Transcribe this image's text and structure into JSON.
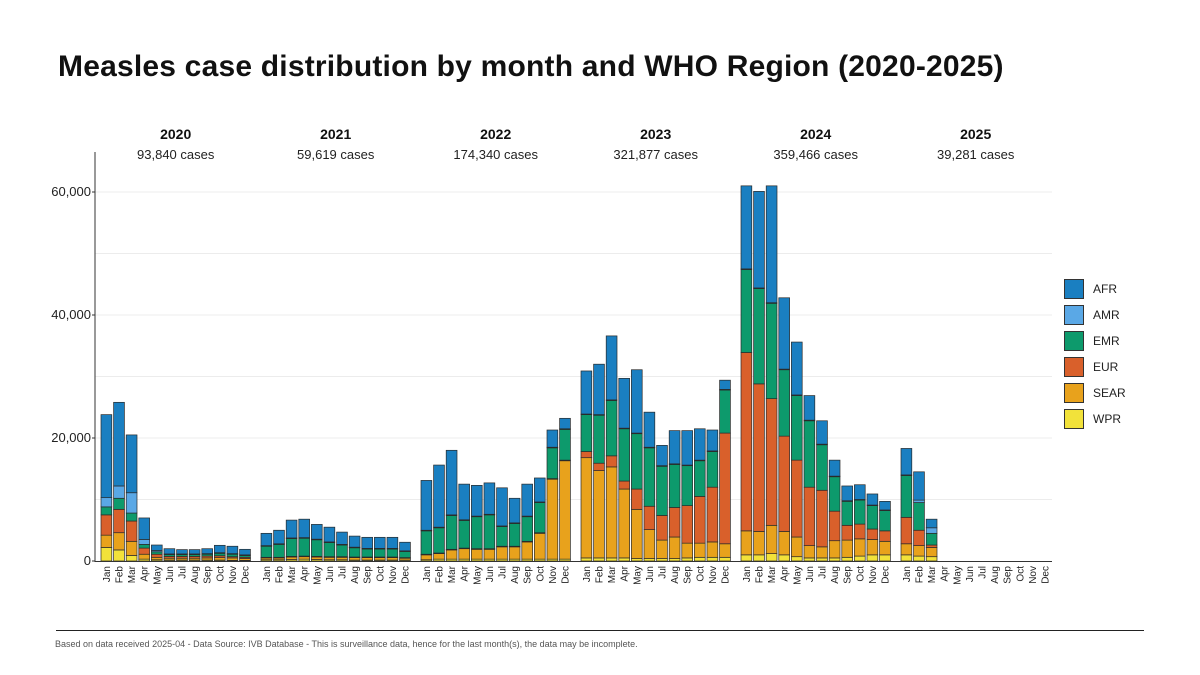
{
  "title": "Measles case distribution by month and WHO Region (2020-2025)",
  "footnote": "Based on data received 2025-04 - Data Source: IVB Database - This is surveillance data, hence for the last month(s), the data may be incomplete.",
  "legend": [
    {
      "name": "AFR",
      "color": "#1a7fc1"
    },
    {
      "name": "AMR",
      "color": "#5aa8e6"
    },
    {
      "name": "EMR",
      "color": "#0d9a6c"
    },
    {
      "name": "EUR",
      "color": "#d9602b"
    },
    {
      "name": "SEAR",
      "color": "#e8a21c"
    },
    {
      "name": "WPR",
      "color": "#f2e23a"
    }
  ],
  "chart_data": {
    "type": "bar",
    "stacked": true,
    "title": "Measles case distribution by month and WHO Region (2020-2025)",
    "xlabel": "",
    "ylabel": "",
    "ylim": [
      0,
      65000
    ],
    "yticks": [
      0,
      20000,
      40000,
      60000
    ],
    "ytick_labels": [
      "0",
      "20,000",
      "40,000",
      "60,000"
    ],
    "grid": true,
    "legend_position": "right",
    "months": [
      "Jan",
      "Feb",
      "Mar",
      "Apr",
      "May",
      "Jun",
      "Jul",
      "Aug",
      "Sep",
      "Oct",
      "Nov",
      "Dec"
    ],
    "years": [
      {
        "year": "2020",
        "total": "93,840 cases"
      },
      {
        "year": "2021",
        "total": "59,619 cases"
      },
      {
        "year": "2022",
        "total": "174,340 cases"
      },
      {
        "year": "2023",
        "total": "321,877 cases"
      },
      {
        "year": "2024",
        "total": "359,466 cases"
      },
      {
        "year": "2025",
        "total": "39,281 cases"
      }
    ],
    "series_order": [
      "WPR",
      "SEAR",
      "EUR",
      "EMR",
      "AMR",
      "AFR"
    ],
    "series": [
      {
        "name": "WPR",
        "values": [
          2200,
          1800,
          900,
          300,
          200,
          150,
          150,
          150,
          150,
          150,
          100,
          100,
          200,
          200,
          250,
          300,
          250,
          200,
          200,
          150,
          150,
          150,
          150,
          150,
          200,
          300,
          300,
          300,
          300,
          300,
          300,
          300,
          300,
          300,
          300,
          300,
          500,
          500,
          500,
          500,
          400,
          400,
          400,
          400,
          500,
          600,
          600,
          600,
          1000,
          1000,
          1200,
          1000,
          700,
          500,
          500,
          500,
          600,
          800,
          1000,
          1000,
          1000,
          800,
          700,
          0,
          0,
          0,
          0,
          0,
          0,
          0,
          0,
          0
        ]
      },
      {
        "name": "SEAR",
        "values": [
          2000,
          2800,
          2300,
          800,
          400,
          300,
          300,
          300,
          350,
          400,
          400,
          300,
          300,
          300,
          400,
          400,
          400,
          400,
          400,
          400,
          400,
          400,
          400,
          300,
          800,
          900,
          1500,
          1700,
          1600,
          1600,
          2000,
          2000,
          2800,
          4200,
          13000,
          16000,
          16300,
          14200,
          14800,
          11200,
          8000,
          4700,
          3000,
          3500,
          2400,
          2300,
          2500,
          2200,
          3900,
          3800,
          4600,
          3800,
          3200,
          2000,
          1800,
          2800,
          2800,
          2800,
          2500,
          2200,
          1800,
          1700,
          1500,
          0,
          0,
          0,
          0,
          0,
          0,
          0,
          0,
          0
        ]
      },
      {
        "name": "EUR",
        "values": [
          3300,
          3800,
          3300,
          1000,
          500,
          300,
          300,
          300,
          300,
          300,
          200,
          200,
          100,
          100,
          100,
          100,
          100,
          100,
          100,
          100,
          100,
          100,
          100,
          100,
          100,
          100,
          100,
          100,
          100,
          100,
          100,
          100,
          100,
          100,
          100,
          100,
          1000,
          1200,
          1800,
          1300,
          3300,
          3800,
          4000,
          4800,
          6100,
          7600,
          8900,
          18000,
          29000,
          24000,
          20600,
          15500,
          12500,
          9500,
          9200,
          4800,
          2400,
          2400,
          1700,
          1700,
          4300,
          2500,
          400,
          0,
          0,
          0,
          0,
          0,
          0,
          0,
          0,
          0
        ]
      },
      {
        "name": "EMR",
        "values": [
          1300,
          1800,
          1300,
          600,
          400,
          300,
          300,
          300,
          300,
          400,
          400,
          300,
          1800,
          2100,
          2900,
          2900,
          2700,
          2300,
          1900,
          1500,
          1300,
          1300,
          1300,
          1000,
          3800,
          4100,
          5500,
          4500,
          5200,
          5500,
          3200,
          3700,
          4000,
          4900,
          5000,
          5000,
          6000,
          7800,
          9000,
          8500,
          9000,
          9500,
          8000,
          7000,
          6500,
          5800,
          5800,
          7000,
          13500,
          15500,
          15500,
          10800,
          10500,
          10800,
          7400,
          5600,
          3900,
          3900,
          3800,
          3300,
          6800,
          4500,
          1900,
          0,
          0,
          0,
          0,
          0,
          0,
          0,
          0,
          0
        ]
      },
      {
        "name": "AMR",
        "values": [
          1500,
          2000,
          3300,
          800,
          200,
          100,
          100,
          100,
          100,
          100,
          100,
          100,
          100,
          100,
          100,
          100,
          100,
          100,
          100,
          100,
          100,
          100,
          100,
          100,
          100,
          100,
          100,
          100,
          100,
          100,
          100,
          100,
          100,
          100,
          100,
          100,
          100,
          100,
          100,
          100,
          100,
          100,
          100,
          100,
          100,
          100,
          100,
          100,
          100,
          100,
          100,
          100,
          100,
          100,
          100,
          100,
          100,
          100,
          100,
          100,
          100,
          400,
          900,
          0,
          0,
          0,
          0,
          0,
          0,
          0,
          0,
          0
        ]
      },
      {
        "name": "AFR",
        "values": [
          13500,
          13600,
          9400,
          3500,
          900,
          850,
          700,
          700,
          800,
          1200,
          1200,
          900,
          2000,
          2200,
          2900,
          3000,
          2400,
          2400,
          2000,
          1800,
          1800,
          1800,
          1800,
          1400,
          8100,
          10100,
          10500,
          5800,
          5000,
          5100,
          6200,
          4000,
          5200,
          3900,
          2800,
          1700,
          7000,
          8200,
          10400,
          8100,
          10300,
          5700,
          3300,
          5400,
          5600,
          5100,
          3400,
          1500,
          13500,
          15700,
          19000,
          11600,
          8600,
          4000,
          3800,
          2600,
          2400,
          2400,
          1800,
          1400,
          4300,
          4600,
          1400,
          0,
          0,
          0,
          0,
          0,
          0,
          0,
          0,
          0
        ]
      }
    ]
  }
}
